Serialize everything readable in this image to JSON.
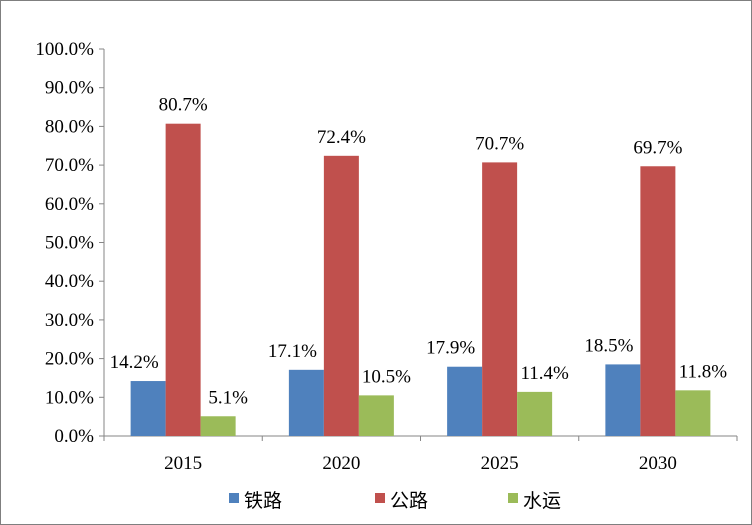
{
  "chart_data": {
    "type": "bar",
    "categories": [
      "2015",
      "2020",
      "2025",
      "2030"
    ],
    "series": [
      {
        "name": "铁路",
        "values": [
          14.2,
          17.1,
          17.9,
          18.5
        ],
        "labels": [
          "14.2%",
          "17.1%",
          "17.9%",
          "18.5%"
        ],
        "color": "#4f81bd"
      },
      {
        "name": "公路",
        "values": [
          80.7,
          72.4,
          70.7,
          69.7
        ],
        "labels": [
          "80.7%",
          "72.4%",
          "70.7%",
          "69.7%"
        ],
        "color": "#c0504d"
      },
      {
        "name": "水运",
        "values": [
          5.1,
          10.5,
          11.4,
          11.8
        ],
        "labels": [
          "5.1%",
          "10.5%",
          "11.4%",
          "11.8%"
        ],
        "color": "#9bbb59"
      }
    ],
    "y_ticks": [
      "0.0%",
      "10.0%",
      "20.0%",
      "30.0%",
      "40.0%",
      "50.0%",
      "60.0%",
      "70.0%",
      "80.0%",
      "90.0%",
      "100.0%"
    ],
    "ylim": [
      0,
      100
    ],
    "grid": false,
    "legend": "bottom",
    "title": "",
    "xlabel": "",
    "ylabel": ""
  }
}
